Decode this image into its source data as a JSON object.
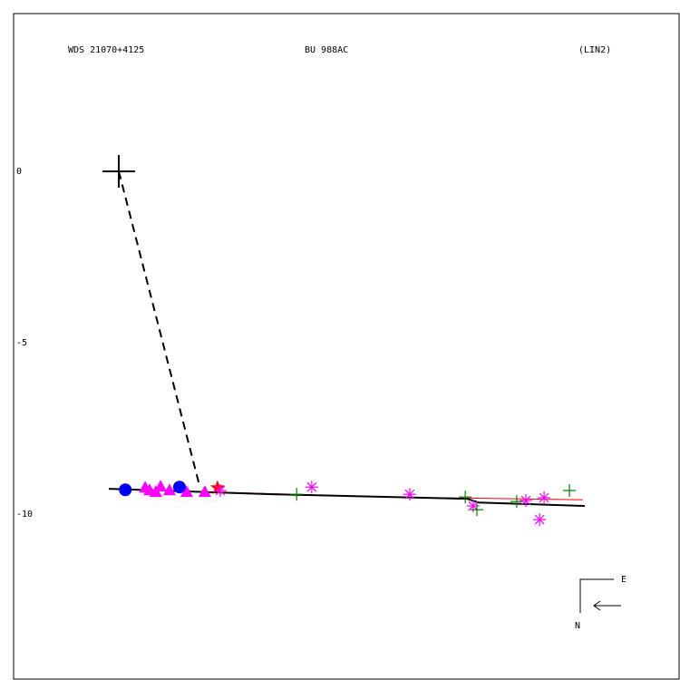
{
  "chart_data": {
    "type": "scatter",
    "title": "WDS 21070+4125",
    "subtitle": "BU  988AC",
    "reference": "(LIN2)",
    "xlim": [
      -3.07,
      16.35
    ],
    "ylim": [
      -14.81,
      4.6
    ],
    "yticks": [
      0,
      -5,
      -10
    ],
    "primary": {
      "x": 0,
      "y": 0,
      "color": "#000000"
    },
    "lines": [
      {
        "color": "#000000",
        "style": "dashed",
        "x": [
          0,
          2.35
        ],
        "y": [
          0,
          -9.15
        ]
      },
      {
        "color": "#ff0000",
        "style": "solid",
        "x": [
          0.5,
          7.91,
          13.54
        ],
        "y": [
          -9.29,
          -9.5,
          -9.58
        ]
      },
      {
        "color": "#000000",
        "style": "solid",
        "x": [
          -0.29,
          4.47,
          10.16,
          10.5,
          13.6
        ],
        "y": [
          -9.26,
          -9.42,
          -9.55,
          -9.66,
          -9.76
        ]
      }
    ],
    "series": [
      {
        "marker": "triangle",
        "color": "#ff00ff",
        "x": [
          0.77,
          0.9,
          1.08,
          1.22,
          1.48,
          1.98,
          2.51
        ],
        "y": [
          -9.21,
          -9.29,
          -9.34,
          -9.18,
          -9.29,
          -9.34,
          -9.34
        ]
      },
      {
        "marker": "circle",
        "color": "#0000ff",
        "x": [
          0.19,
          1.77
        ],
        "y": [
          -9.29,
          -9.21
        ]
      },
      {
        "marker": "star",
        "color": "#ff0000",
        "x": [
          2.88
        ],
        "y": [
          -9.23
        ]
      },
      {
        "marker": "asterisk",
        "color": "#ff00ff",
        "x": [
          2.96,
          5.63,
          8.49,
          10.34,
          11.88,
          12.28,
          12.41
        ],
        "y": [
          -9.31,
          -9.21,
          -9.42,
          -9.76,
          -9.6,
          -10.16,
          -9.52
        ]
      },
      {
        "marker": "plus",
        "color": "#008000",
        "x": [
          5.19,
          10.11,
          10.45,
          11.61,
          13.15
        ],
        "y": [
          -9.42,
          -9.5,
          -9.87,
          -9.63,
          -9.31
        ]
      }
    ],
    "compass": {
      "east": "E",
      "north": "N"
    }
  }
}
